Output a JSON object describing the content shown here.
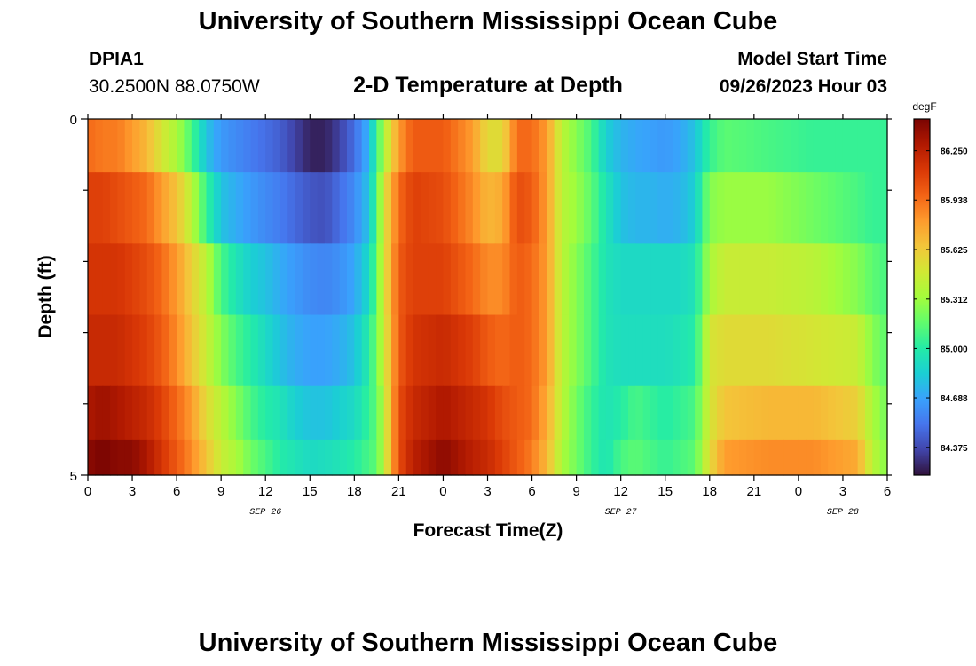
{
  "header": {
    "title": "University of Southern Mississippi Ocean Cube",
    "station_id": "DPIA1",
    "station_coords": "30.2500N  88.0750W",
    "plot_title": "2-D Temperature at Depth",
    "model_start_label": "Model Start Time",
    "model_start_value": "09/26/2023 Hour 03"
  },
  "footer": {
    "title": "University of Southern Mississippi Ocean Cube"
  },
  "chart_data": {
    "type": "heatmap",
    "title": "2-D Temperature at Depth",
    "xlabel": "Forecast Time(Z)",
    "ylabel": "Depth (ft)",
    "x_range_hours": [
      0,
      54
    ],
    "y_range": [
      0,
      5
    ],
    "y_tick_labels": [
      "0",
      "5"
    ],
    "x_tick_labels": [
      "0",
      "3",
      "6",
      "9",
      "12",
      "15",
      "18",
      "21",
      "0",
      "3",
      "6",
      "9",
      "12",
      "15",
      "18",
      "21",
      "0",
      "3",
      "6"
    ],
    "day_labels": [
      {
        "label": "SEP 26",
        "at_hour": 12
      },
      {
        "label": "SEP 27",
        "at_hour": 36
      },
      {
        "label": "SEP 28",
        "at_hour": 51
      }
    ],
    "colorbar": {
      "unit": "degF",
      "min": 84.2,
      "max": 86.45,
      "ticks": [
        "86.250",
        "85.938",
        "85.625",
        "85.312",
        "85.000",
        "84.688",
        "84.375"
      ],
      "colors": [
        "#30123b",
        "#4145ab",
        "#4675ed",
        "#39a2fc",
        "#1bcfd4",
        "#24eca6",
        "#61fc6c",
        "#a4fc3b",
        "#d1e834",
        "#f3c63a",
        "#fe9b2d",
        "#f36315",
        "#d93806",
        "#b11901",
        "#7a0402"
      ]
    },
    "time_step_hours": 0.5,
    "depth_levels": [
      0.25,
      1.25,
      2.25,
      3.25,
      4.25,
      4.75
    ],
    "keyframes": [
      {
        "t": 0,
        "v": [
          85.95,
          86.1,
          86.15,
          86.2,
          86.3,
          86.4
        ]
      },
      {
        "t": 1,
        "v": [
          85.9,
          86.1,
          86.15,
          86.2,
          86.35,
          86.45
        ]
      },
      {
        "t": 2,
        "v": [
          85.9,
          86.05,
          86.15,
          86.2,
          86.3,
          86.4
        ]
      },
      {
        "t": 3,
        "v": [
          85.8,
          86.0,
          86.1,
          86.15,
          86.25,
          86.4
        ]
      },
      {
        "t": 4,
        "v": [
          85.7,
          85.95,
          86.05,
          86.1,
          86.2,
          86.3
        ]
      },
      {
        "t": 5,
        "v": [
          85.5,
          85.8,
          85.95,
          86.0,
          86.1,
          86.15
        ]
      },
      {
        "t": 6,
        "v": [
          85.35,
          85.65,
          85.8,
          85.85,
          85.95,
          86.0
        ]
      },
      {
        "t": 7,
        "v": [
          85.1,
          85.4,
          85.6,
          85.65,
          85.8,
          85.85
        ]
      },
      {
        "t": 8,
        "v": [
          84.8,
          85.05,
          85.4,
          85.45,
          85.55,
          85.65
        ]
      },
      {
        "t": 9,
        "v": [
          84.65,
          84.8,
          85.1,
          85.25,
          85.4,
          85.45
        ]
      },
      {
        "t": 10,
        "v": [
          84.6,
          84.72,
          84.95,
          85.1,
          85.25,
          85.35
        ]
      },
      {
        "t": 11,
        "v": [
          84.55,
          84.65,
          84.85,
          85.0,
          85.1,
          85.2
        ]
      },
      {
        "t": 12,
        "v": [
          84.5,
          84.6,
          84.8,
          84.9,
          85.0,
          85.1
        ]
      },
      {
        "t": 13,
        "v": [
          84.45,
          84.55,
          84.72,
          84.8,
          84.95,
          85.0
        ]
      },
      {
        "t": 14,
        "v": [
          84.35,
          84.48,
          84.65,
          84.72,
          84.85,
          84.95
        ]
      },
      {
        "t": 15,
        "v": [
          84.25,
          84.42,
          84.6,
          84.68,
          84.8,
          84.9
        ]
      },
      {
        "t": 16,
        "v": [
          84.25,
          84.4,
          84.58,
          84.68,
          84.8,
          84.92
        ]
      },
      {
        "t": 17,
        "v": [
          84.35,
          84.5,
          84.62,
          84.72,
          84.85,
          84.95
        ]
      },
      {
        "t": 18,
        "v": [
          84.5,
          84.6,
          84.7,
          84.8,
          84.9,
          85.0
        ]
      },
      {
        "t": 19,
        "v": [
          84.75,
          84.8,
          84.9,
          85.0,
          85.05,
          85.1
        ]
      },
      {
        "t": 19.5,
        "v": [
          85.05,
          85.1,
          85.15,
          85.2,
          85.15,
          85.15
        ]
      },
      {
        "t": 20,
        "v": [
          85.35,
          85.5,
          85.5,
          85.45,
          85.4,
          85.4
        ]
      },
      {
        "t": 21,
        "v": [
          85.8,
          85.95,
          86.0,
          86.0,
          86.05,
          86.05
        ]
      },
      {
        "t": 22,
        "v": [
          86.0,
          86.1,
          86.1,
          86.15,
          86.2,
          86.25
        ]
      },
      {
        "t": 24,
        "v": [
          86.0,
          86.05,
          86.1,
          86.2,
          86.3,
          86.4
        ]
      },
      {
        "t": 26,
        "v": [
          85.8,
          85.85,
          85.95,
          86.1,
          86.2,
          86.25
        ]
      },
      {
        "t": 27,
        "v": [
          85.55,
          85.7,
          85.85,
          86.0,
          86.15,
          86.2
        ]
      },
      {
        "t": 28,
        "v": [
          85.55,
          85.75,
          85.85,
          85.95,
          86.05,
          86.1
        ]
      },
      {
        "t": 29,
        "v": [
          85.95,
          86.05,
          86.0,
          86.0,
          86.0,
          86.0
        ]
      },
      {
        "t": 30,
        "v": [
          85.95,
          86.0,
          85.95,
          85.95,
          85.95,
          85.9
        ]
      },
      {
        "t": 31,
        "v": [
          85.8,
          85.8,
          85.8,
          85.8,
          85.75,
          85.7
        ]
      },
      {
        "t": 32,
        "v": [
          85.4,
          85.4,
          85.4,
          85.4,
          85.4,
          85.35
        ]
      },
      {
        "t": 33,
        "v": [
          85.25,
          85.3,
          85.25,
          85.25,
          85.2,
          85.2
        ]
      },
      {
        "t": 34,
        "v": [
          85.1,
          85.15,
          85.1,
          85.1,
          85.05,
          85.05
        ]
      },
      {
        "t": 35,
        "v": [
          84.85,
          84.95,
          84.95,
          84.95,
          84.95,
          84.95
        ]
      },
      {
        "t": 36,
        "v": [
          84.75,
          84.8,
          84.9,
          84.92,
          85.0,
          85.1
        ]
      },
      {
        "t": 37,
        "v": [
          84.7,
          84.75,
          84.9,
          84.92,
          85.1,
          85.15
        ]
      },
      {
        "t": 38,
        "v": [
          84.68,
          84.75,
          84.9,
          84.92,
          85.05,
          85.1
        ]
      },
      {
        "t": 39,
        "v": [
          84.65,
          84.72,
          84.9,
          84.92,
          85.0,
          85.05
        ]
      },
      {
        "t": 40,
        "v": [
          84.7,
          84.75,
          84.9,
          84.95,
          85.05,
          85.1
        ]
      },
      {
        "t": 41,
        "v": [
          84.8,
          84.85,
          84.95,
          85.0,
          85.1,
          85.15
        ]
      },
      {
        "t": 42,
        "v": [
          85.05,
          85.25,
          85.35,
          85.5,
          85.5,
          85.55
        ]
      },
      {
        "t": 43,
        "v": [
          85.15,
          85.3,
          85.45,
          85.55,
          85.65,
          85.8
        ]
      },
      {
        "t": 46,
        "v": [
          85.1,
          85.3,
          85.45,
          85.55,
          85.7,
          85.85
        ]
      },
      {
        "t": 49,
        "v": [
          85.05,
          85.2,
          85.4,
          85.5,
          85.7,
          85.85
        ]
      },
      {
        "t": 52,
        "v": [
          85.05,
          85.1,
          85.25,
          85.45,
          85.6,
          85.75
        ]
      },
      {
        "t": 53,
        "v": [
          85.05,
          85.05,
          85.15,
          85.25,
          85.35,
          85.4
        ]
      },
      {
        "t": 54,
        "v": [
          85.05,
          85.05,
          85.1,
          85.15,
          85.2,
          85.25
        ]
      }
    ]
  }
}
